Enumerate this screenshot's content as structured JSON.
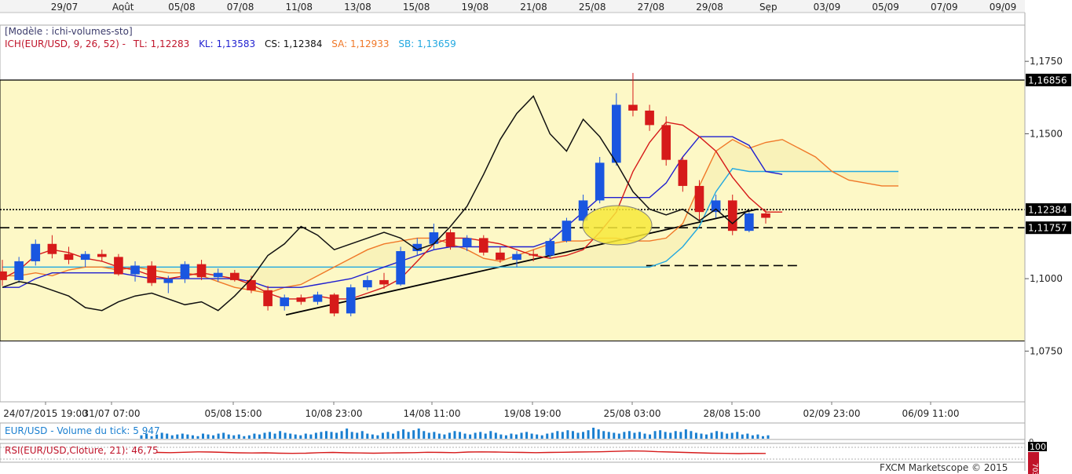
{
  "chart_data": {
    "type": "candlestick",
    "instrument": "EUR/USD",
    "model_label": "[Modèle : ichi-volumes-sto]",
    "ichimoku": {
      "title": "ICH(EUR/USD, 9, 26, 52) -",
      "tl": "TL: 1,12283",
      "kl": "KL: 1,13583",
      "cs": "CS: 1,12384",
      "sa": "SA: 1,12933",
      "sb": "SB: 1,13659"
    },
    "top_dates": [
      "29/07",
      "Août",
      "05/08",
      "07/08",
      "11/08",
      "13/08",
      "15/08",
      "19/08",
      "21/08",
      "25/08",
      "27/08",
      "29/08",
      "Sep",
      "03/09",
      "05/09",
      "07/09",
      "09/09"
    ],
    "bottom_dates": [
      "24/07/2015 19:00",
      "31/07 07:00",
      "05/08 15:00",
      "10/08 23:00",
      "14/08 11:00",
      "19/08 19:00",
      "25/08 03:00",
      "28/08 15:00",
      "02/09 23:00",
      "06/09 11:00"
    ],
    "y_ticks": [
      "1,1750",
      "1,1500",
      "1,1000",
      "1,0750"
    ],
    "y_ticks_values": [
      1.175,
      1.15,
      1.1,
      1.075
    ],
    "ylim": [
      1.0575,
      1.1875
    ],
    "price_tags": [
      {
        "label": "1,16856",
        "value": 1.16856,
        "style": "solid"
      },
      {
        "label": "1,12384",
        "value": 1.12384,
        "style": "dotted"
      },
      {
        "label": "1,11757",
        "value": 1.11757,
        "style": "dashed"
      }
    ],
    "range_box": [
      1.0785,
      1.1685
    ],
    "candles": [
      [
        1.1025,
        1.1065,
        1.0975,
        1.0995
      ],
      [
        1.0995,
        1.1075,
        1.0985,
        1.106
      ],
      [
        1.106,
        1.1135,
        1.1045,
        1.112
      ],
      [
        1.112,
        1.115,
        1.107,
        1.1085
      ],
      [
        1.1085,
        1.111,
        1.105,
        1.1065
      ],
      [
        1.1065,
        1.1095,
        1.104,
        1.1085
      ],
      [
        1.1085,
        1.11,
        1.106,
        1.1075
      ],
      [
        1.1075,
        1.1085,
        1.101,
        1.1015
      ],
      [
        1.1015,
        1.106,
        1.099,
        1.1045
      ],
      [
        1.1045,
        1.106,
        1.0975,
        1.0985
      ],
      [
        1.0985,
        1.101,
        1.095,
        1.1
      ],
      [
        1.1,
        1.106,
        1.0985,
        1.105
      ],
      [
        1.105,
        1.1065,
        1.0995,
        1.1005
      ],
      [
        1.1005,
        1.1035,
        1.099,
        1.102
      ],
      [
        1.102,
        1.103,
        1.099,
        1.0995
      ],
      [
        1.0995,
        1.101,
        1.095,
        1.096
      ],
      [
        1.096,
        1.0975,
        1.089,
        1.0905
      ],
      [
        1.0905,
        1.0945,
        1.089,
        1.0935
      ],
      [
        1.0935,
        1.0945,
        1.091,
        1.092
      ],
      [
        1.092,
        1.0955,
        1.091,
        1.0945
      ],
      [
        1.0945,
        1.095,
        1.087,
        1.088
      ],
      [
        1.088,
        1.098,
        1.087,
        1.097
      ],
      [
        1.097,
        1.101,
        1.096,
        1.0995
      ],
      [
        1.0995,
        1.102,
        1.0965,
        1.098
      ],
      [
        1.098,
        1.111,
        1.0975,
        1.1095
      ],
      [
        1.1095,
        1.114,
        1.108,
        1.112
      ],
      [
        1.112,
        1.119,
        1.11,
        1.116
      ],
      [
        1.116,
        1.117,
        1.11,
        1.111
      ],
      [
        1.111,
        1.115,
        1.1095,
        1.114
      ],
      [
        1.114,
        1.115,
        1.108,
        1.109
      ],
      [
        1.109,
        1.111,
        1.1055,
        1.1065
      ],
      [
        1.1065,
        1.1095,
        1.104,
        1.1085
      ],
      [
        1.1085,
        1.11,
        1.106,
        1.108
      ],
      [
        1.108,
        1.114,
        1.107,
        1.113
      ],
      [
        1.113,
        1.121,
        1.1125,
        1.12
      ],
      [
        1.12,
        1.129,
        1.119,
        1.127
      ],
      [
        1.127,
        1.142,
        1.126,
        1.14
      ],
      [
        1.14,
        1.164,
        1.139,
        1.16
      ],
      [
        1.16,
        1.171,
        1.156,
        1.158
      ],
      [
        1.158,
        1.16,
        1.151,
        1.153
      ],
      [
        1.153,
        1.156,
        1.139,
        1.141
      ],
      [
        1.141,
        1.142,
        1.13,
        1.132
      ],
      [
        1.132,
        1.134,
        1.12,
        1.123
      ],
      [
        1.123,
        1.129,
        1.121,
        1.127
      ],
      [
        1.127,
        1.129,
        1.115,
        1.1165
      ],
      [
        1.1165,
        1.123,
        1.116,
        1.1225
      ],
      [
        1.1225,
        1.124,
        1.119,
        1.121
      ]
    ],
    "tenkan": [
      1.1,
      1.103,
      1.108,
      1.11,
      1.109,
      1.107,
      1.106,
      1.104,
      1.103,
      1.101,
      1.1,
      1.101,
      1.102,
      1.101,
      1.1,
      1.098,
      1.095,
      1.093,
      1.093,
      1.094,
      1.093,
      1.093,
      1.095,
      1.097,
      1.1,
      1.106,
      1.112,
      1.114,
      1.114,
      1.113,
      1.112,
      1.11,
      1.108,
      1.107,
      1.108,
      1.11,
      1.116,
      1.123,
      1.137,
      1.147,
      1.154,
      1.153,
      1.149,
      1.144,
      1.135,
      1.128,
      1.123,
      1.123
    ],
    "kijun": [
      1.097,
      1.097,
      1.1,
      1.102,
      1.102,
      1.102,
      1.102,
      1.102,
      1.101,
      1.1,
      1.1,
      1.1,
      1.1,
      1.1,
      1.1,
      1.099,
      1.097,
      1.097,
      1.097,
      1.098,
      1.099,
      1.1,
      1.102,
      1.104,
      1.106,
      1.108,
      1.11,
      1.111,
      1.111,
      1.111,
      1.111,
      1.111,
      1.111,
      1.113,
      1.118,
      1.123,
      1.128,
      1.128,
      1.128,
      1.128,
      1.133,
      1.142,
      1.149,
      1.149,
      1.149,
      1.146,
      1.137,
      1.136
    ],
    "chikou": [
      1.097,
      1.099,
      1.098,
      1.096,
      1.094,
      1.09,
      1.089,
      1.092,
      1.094,
      1.095,
      1.093,
      1.091,
      1.092,
      1.089,
      1.094,
      1.1,
      1.108,
      1.112,
      1.118,
      1.115,
      1.11,
      1.112,
      1.114,
      1.116,
      1.114,
      1.11,
      1.112,
      1.118,
      1.125,
      1.136,
      1.148,
      1.157,
      1.163,
      1.15,
      1.144,
      1.155,
      1.149,
      1.14,
      1.13,
      1.124,
      1.122,
      1.124,
      1.12,
      1.124,
      1.119,
      1.124
    ],
    "senkou_a": [
      1.101,
      1.101,
      1.102,
      1.101,
      1.103,
      1.104,
      1.104,
      1.103,
      1.104,
      1.103,
      1.102,
      1.102,
      1.101,
      1.099,
      1.097,
      1.096,
      1.095,
      1.097,
      1.098,
      1.101,
      1.104,
      1.107,
      1.11,
      1.112,
      1.113,
      1.114,
      1.114,
      1.112,
      1.11,
      1.107,
      1.106,
      1.108,
      1.11,
      1.112,
      1.113,
      1.113,
      1.114,
      1.114,
      1.113,
      1.113,
      1.114,
      1.119,
      1.132,
      1.144,
      1.148,
      1.145,
      1.147,
      1.148,
      1.145,
      1.142,
      1.137,
      1.134,
      1.133,
      1.132,
      1.132
    ],
    "senkou_b": [
      1.104,
      1.104,
      1.104,
      1.104,
      1.104,
      1.104,
      1.104,
      1.104,
      1.104,
      1.104,
      1.104,
      1.104,
      1.104,
      1.104,
      1.104,
      1.104,
      1.104,
      1.104,
      1.104,
      1.104,
      1.104,
      1.104,
      1.104,
      1.104,
      1.104,
      1.104,
      1.104,
      1.104,
      1.104,
      1.104,
      1.104,
      1.104,
      1.104,
      1.104,
      1.104,
      1.104,
      1.104,
      1.104,
      1.104,
      1.104,
      1.106,
      1.111,
      1.118,
      1.13,
      1.138,
      1.137,
      1.137,
      1.137,
      1.137,
      1.137,
      1.137,
      1.137,
      1.137,
      1.137,
      1.137
    ],
    "support_trendline": [
      [
        1,
        1.0875
      ],
      [
        37,
        1.124
      ]
    ],
    "secondary_dashed_level": 1.1045,
    "volume": {
      "label": "EUR/USD - Volume du tick: 5 947",
      "values": [
        4,
        6,
        3,
        5,
        7,
        6,
        4,
        5,
        6,
        5,
        4,
        3,
        6,
        5,
        4,
        6,
        7,
        5,
        4,
        5,
        3,
        4,
        6,
        5,
        7,
        8,
        6,
        9,
        7,
        6,
        5,
        4,
        6,
        5,
        7,
        8,
        9,
        8,
        7,
        9,
        12,
        8,
        7,
        9,
        6,
        5,
        4,
        7,
        8,
        6,
        9,
        11,
        8,
        10,
        12,
        9,
        7,
        8,
        6,
        5,
        7,
        9,
        8,
        6,
        5,
        7,
        8,
        6,
        9,
        7,
        5,
        4,
        6,
        5,
        7,
        8,
        6,
        5,
        4,
        6,
        7,
        9,
        8,
        10,
        9,
        7,
        8,
        10,
        13,
        11,
        9,
        8,
        7,
        6,
        8,
        9,
        7,
        8,
        6,
        5,
        9,
        10,
        8,
        7,
        9,
        8,
        11,
        9,
        7,
        6,
        5,
        7,
        9,
        8,
        6,
        7,
        8,
        5,
        6,
        4,
        5,
        3,
        4
      ]
    },
    "rsi": {
      "label": "RSI(EUR/USD,Cloture, 21): 46,75",
      "values": [
        52,
        51,
        53,
        55,
        54,
        52,
        50,
        49,
        50,
        48,
        47,
        48,
        51,
        52,
        50,
        49,
        48,
        49,
        50,
        51,
        53,
        52,
        51,
        54,
        55,
        54,
        53,
        52,
        51,
        52,
        53,
        54,
        55,
        56,
        58,
        60,
        59,
        56,
        54,
        52,
        50,
        48,
        47,
        46,
        47,
        46.75
      ],
      "scale_top": "100",
      "levels": [
        "70",
        "30"
      ]
    },
    "footer": "FXCM Marketscope © 2015"
  }
}
